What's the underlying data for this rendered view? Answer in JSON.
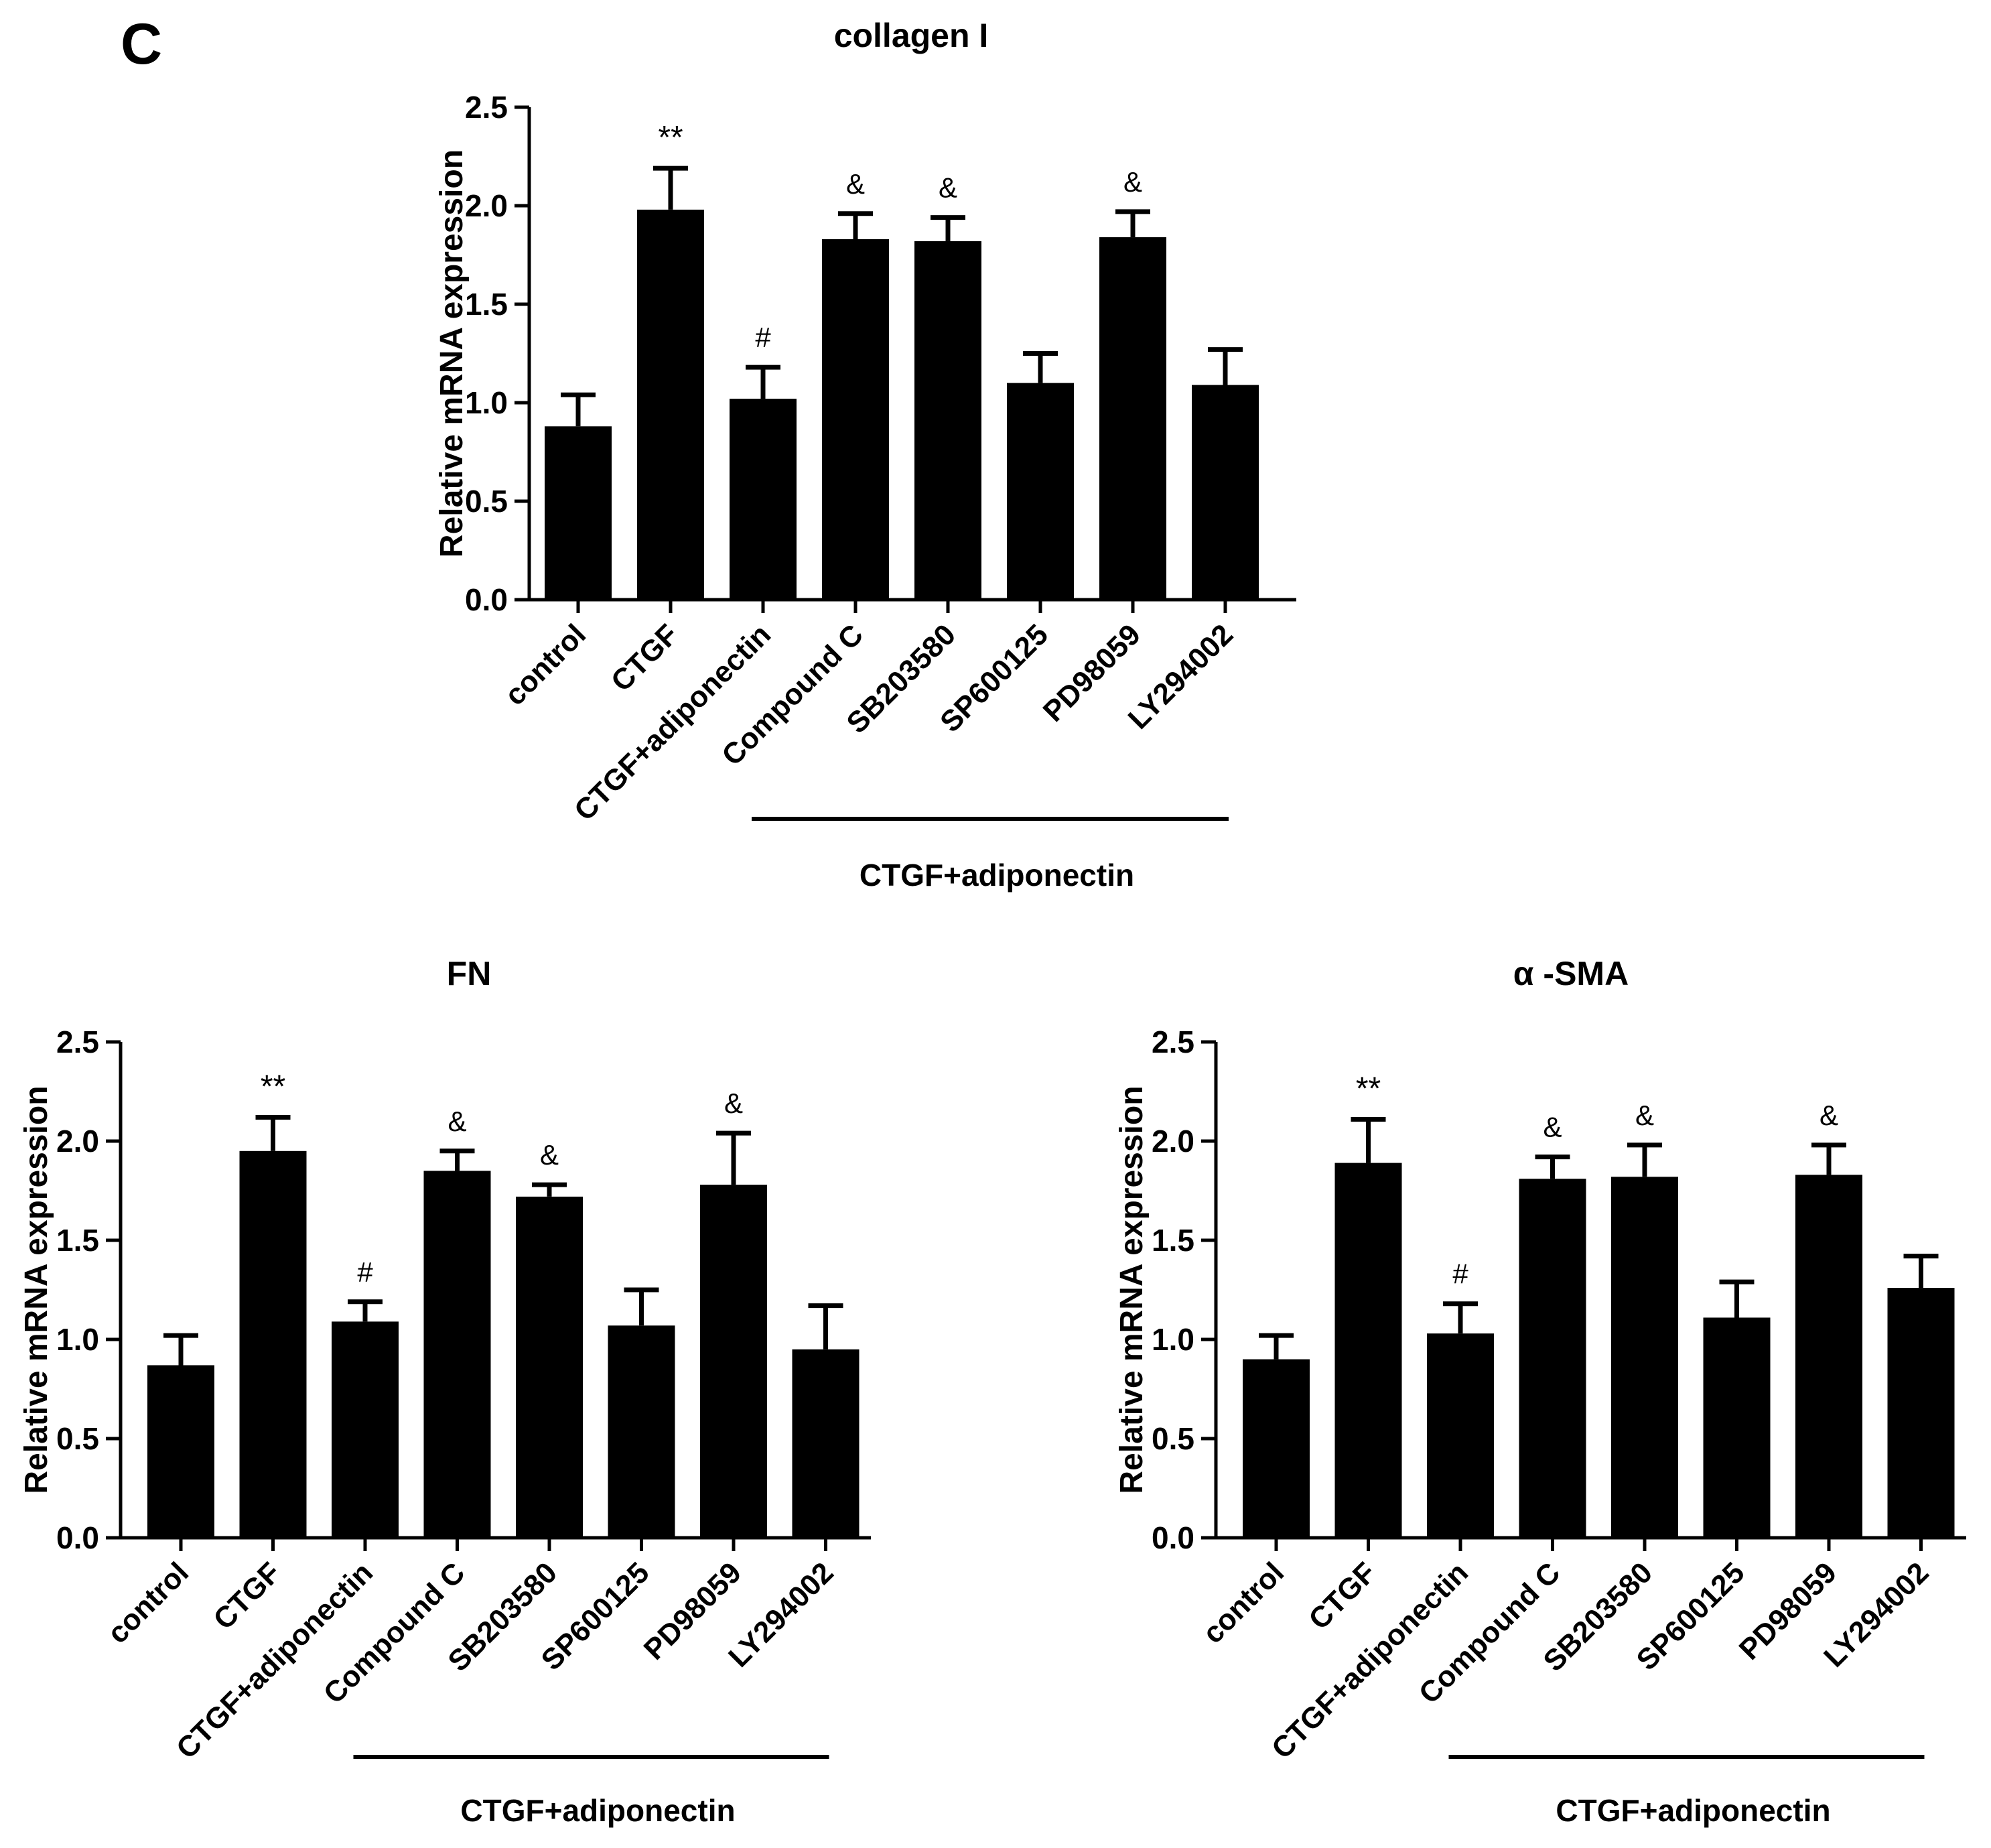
{
  "panel_label": "C",
  "chart_data": [
    {
      "type": "bar",
      "title": "collagen I",
      "ylabel": "Relative mRNA expression",
      "xlabel": "",
      "ylim": [
        0,
        2.5
      ],
      "yticks": [
        "0.0",
        "0.5",
        "1.0",
        "1.5",
        "2.0",
        "2.5"
      ],
      "categories": [
        "control",
        "CTGF",
        "CTGF+adiponectin",
        "Compound C",
        "SB203580",
        "SP600125",
        "PD98059",
        "LY294002"
      ],
      "values": [
        0.88,
        1.98,
        1.02,
        1.83,
        1.82,
        1.1,
        1.84,
        1.09
      ],
      "errors": [
        0.16,
        0.21,
        0.16,
        0.13,
        0.12,
        0.15,
        0.13,
        0.18
      ],
      "annotations": [
        "",
        "**",
        "#",
        "&",
        "&",
        "",
        "&",
        ""
      ],
      "group_label": "CTGF+adiponectin",
      "group_range": [
        3,
        7
      ]
    },
    {
      "type": "bar",
      "title": "FN",
      "ylabel": "Relative mRNA expression",
      "xlabel": "",
      "ylim": [
        0,
        2.5
      ],
      "yticks": [
        "0.0",
        "0.5",
        "1.0",
        "1.5",
        "2.0",
        "2.5"
      ],
      "categories": [
        "control",
        "CTGF",
        "CTGF+adiponectin",
        "Compound C",
        "SB203580",
        "SP600125",
        "PD98059",
        "LY294002"
      ],
      "values": [
        0.87,
        1.95,
        1.09,
        1.85,
        1.72,
        1.07,
        1.78,
        0.95
      ],
      "errors": [
        0.15,
        0.17,
        0.1,
        0.1,
        0.06,
        0.18,
        0.26,
        0.22
      ],
      "annotations": [
        "",
        "**",
        "#",
        "&",
        "&",
        "",
        "&",
        ""
      ],
      "group_label": "CTGF+adiponectin",
      "group_range": [
        3,
        7
      ]
    },
    {
      "type": "bar",
      "title": "α -SMA",
      "ylabel": "Relative mRNA expression",
      "xlabel": "",
      "ylim": [
        0,
        2.5
      ],
      "yticks": [
        "0.0",
        "0.5",
        "1.0",
        "1.5",
        "2.0",
        "2.5"
      ],
      "categories": [
        "control",
        "CTGF",
        "CTGF+adiponectin",
        "Compound C",
        "SB203580",
        "SP600125",
        "PD98059",
        "LY294002"
      ],
      "values": [
        0.9,
        1.89,
        1.03,
        1.81,
        1.82,
        1.11,
        1.83,
        1.26
      ],
      "errors": [
        0.12,
        0.22,
        0.15,
        0.11,
        0.16,
        0.18,
        0.15,
        0.16
      ],
      "annotations": [
        "",
        "**",
        "#",
        "&",
        "&",
        "",
        "&",
        ""
      ],
      "group_label": "CTGF+adiponectin",
      "group_range": [
        3,
        7
      ]
    }
  ]
}
